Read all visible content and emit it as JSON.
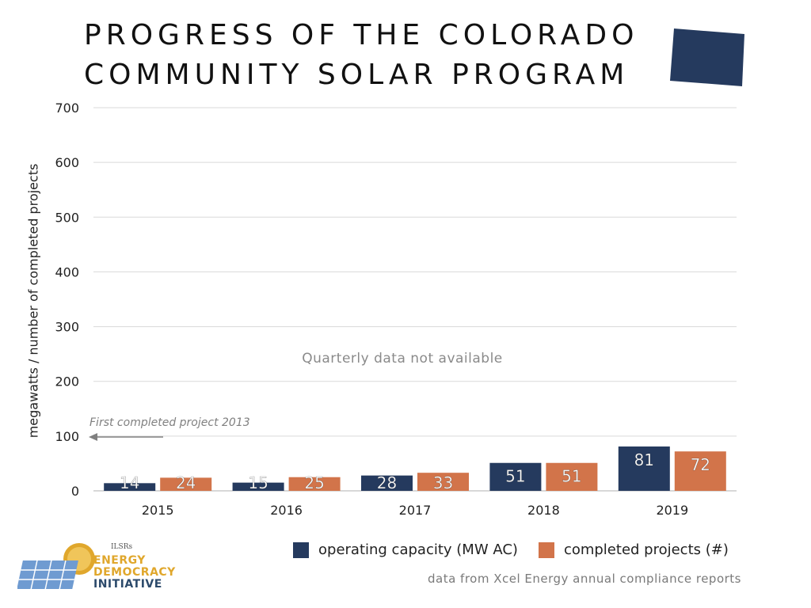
{
  "title": "PROGRESS OF THE COLORADO COMMUNITY SOLAR PROGRAM",
  "source_note": "data from Xcel Energy annual compliance reports",
  "logo": {
    "org": "ILSRs",
    "line1": "ENERGY",
    "line2": "DEMOCRACY",
    "line3": "INITIATIVE"
  },
  "colors": {
    "operating": "#253a5e",
    "projects": "#d2744a",
    "grid": "#d9d9d9",
    "annotation": "#808080"
  },
  "chart_data": {
    "type": "bar",
    "title": "PROGRESS OF THE COLORADO COMMUNITY SOLAR PROGRAM",
    "xlabel": "",
    "ylabel": "megawatts / number of completed projects",
    "ylim": [
      0,
      700
    ],
    "yticks": [
      0,
      100,
      200,
      300,
      400,
      500,
      600,
      700
    ],
    "categories": [
      "2015",
      "2016",
      "2017",
      "2018",
      "2019"
    ],
    "series": [
      {
        "name": "operating capacity (MW AC)",
        "values": [
          14,
          15,
          28,
          51,
          81
        ]
      },
      {
        "name": "completed projects (#)",
        "values": [
          24,
          25,
          33,
          51,
          72
        ]
      }
    ],
    "grid": true,
    "legend_position": "bottom-right",
    "annotations": [
      {
        "text": "Quarterly data not available"
      },
      {
        "text": "First completed project 2013",
        "arrow": "left"
      }
    ]
  }
}
